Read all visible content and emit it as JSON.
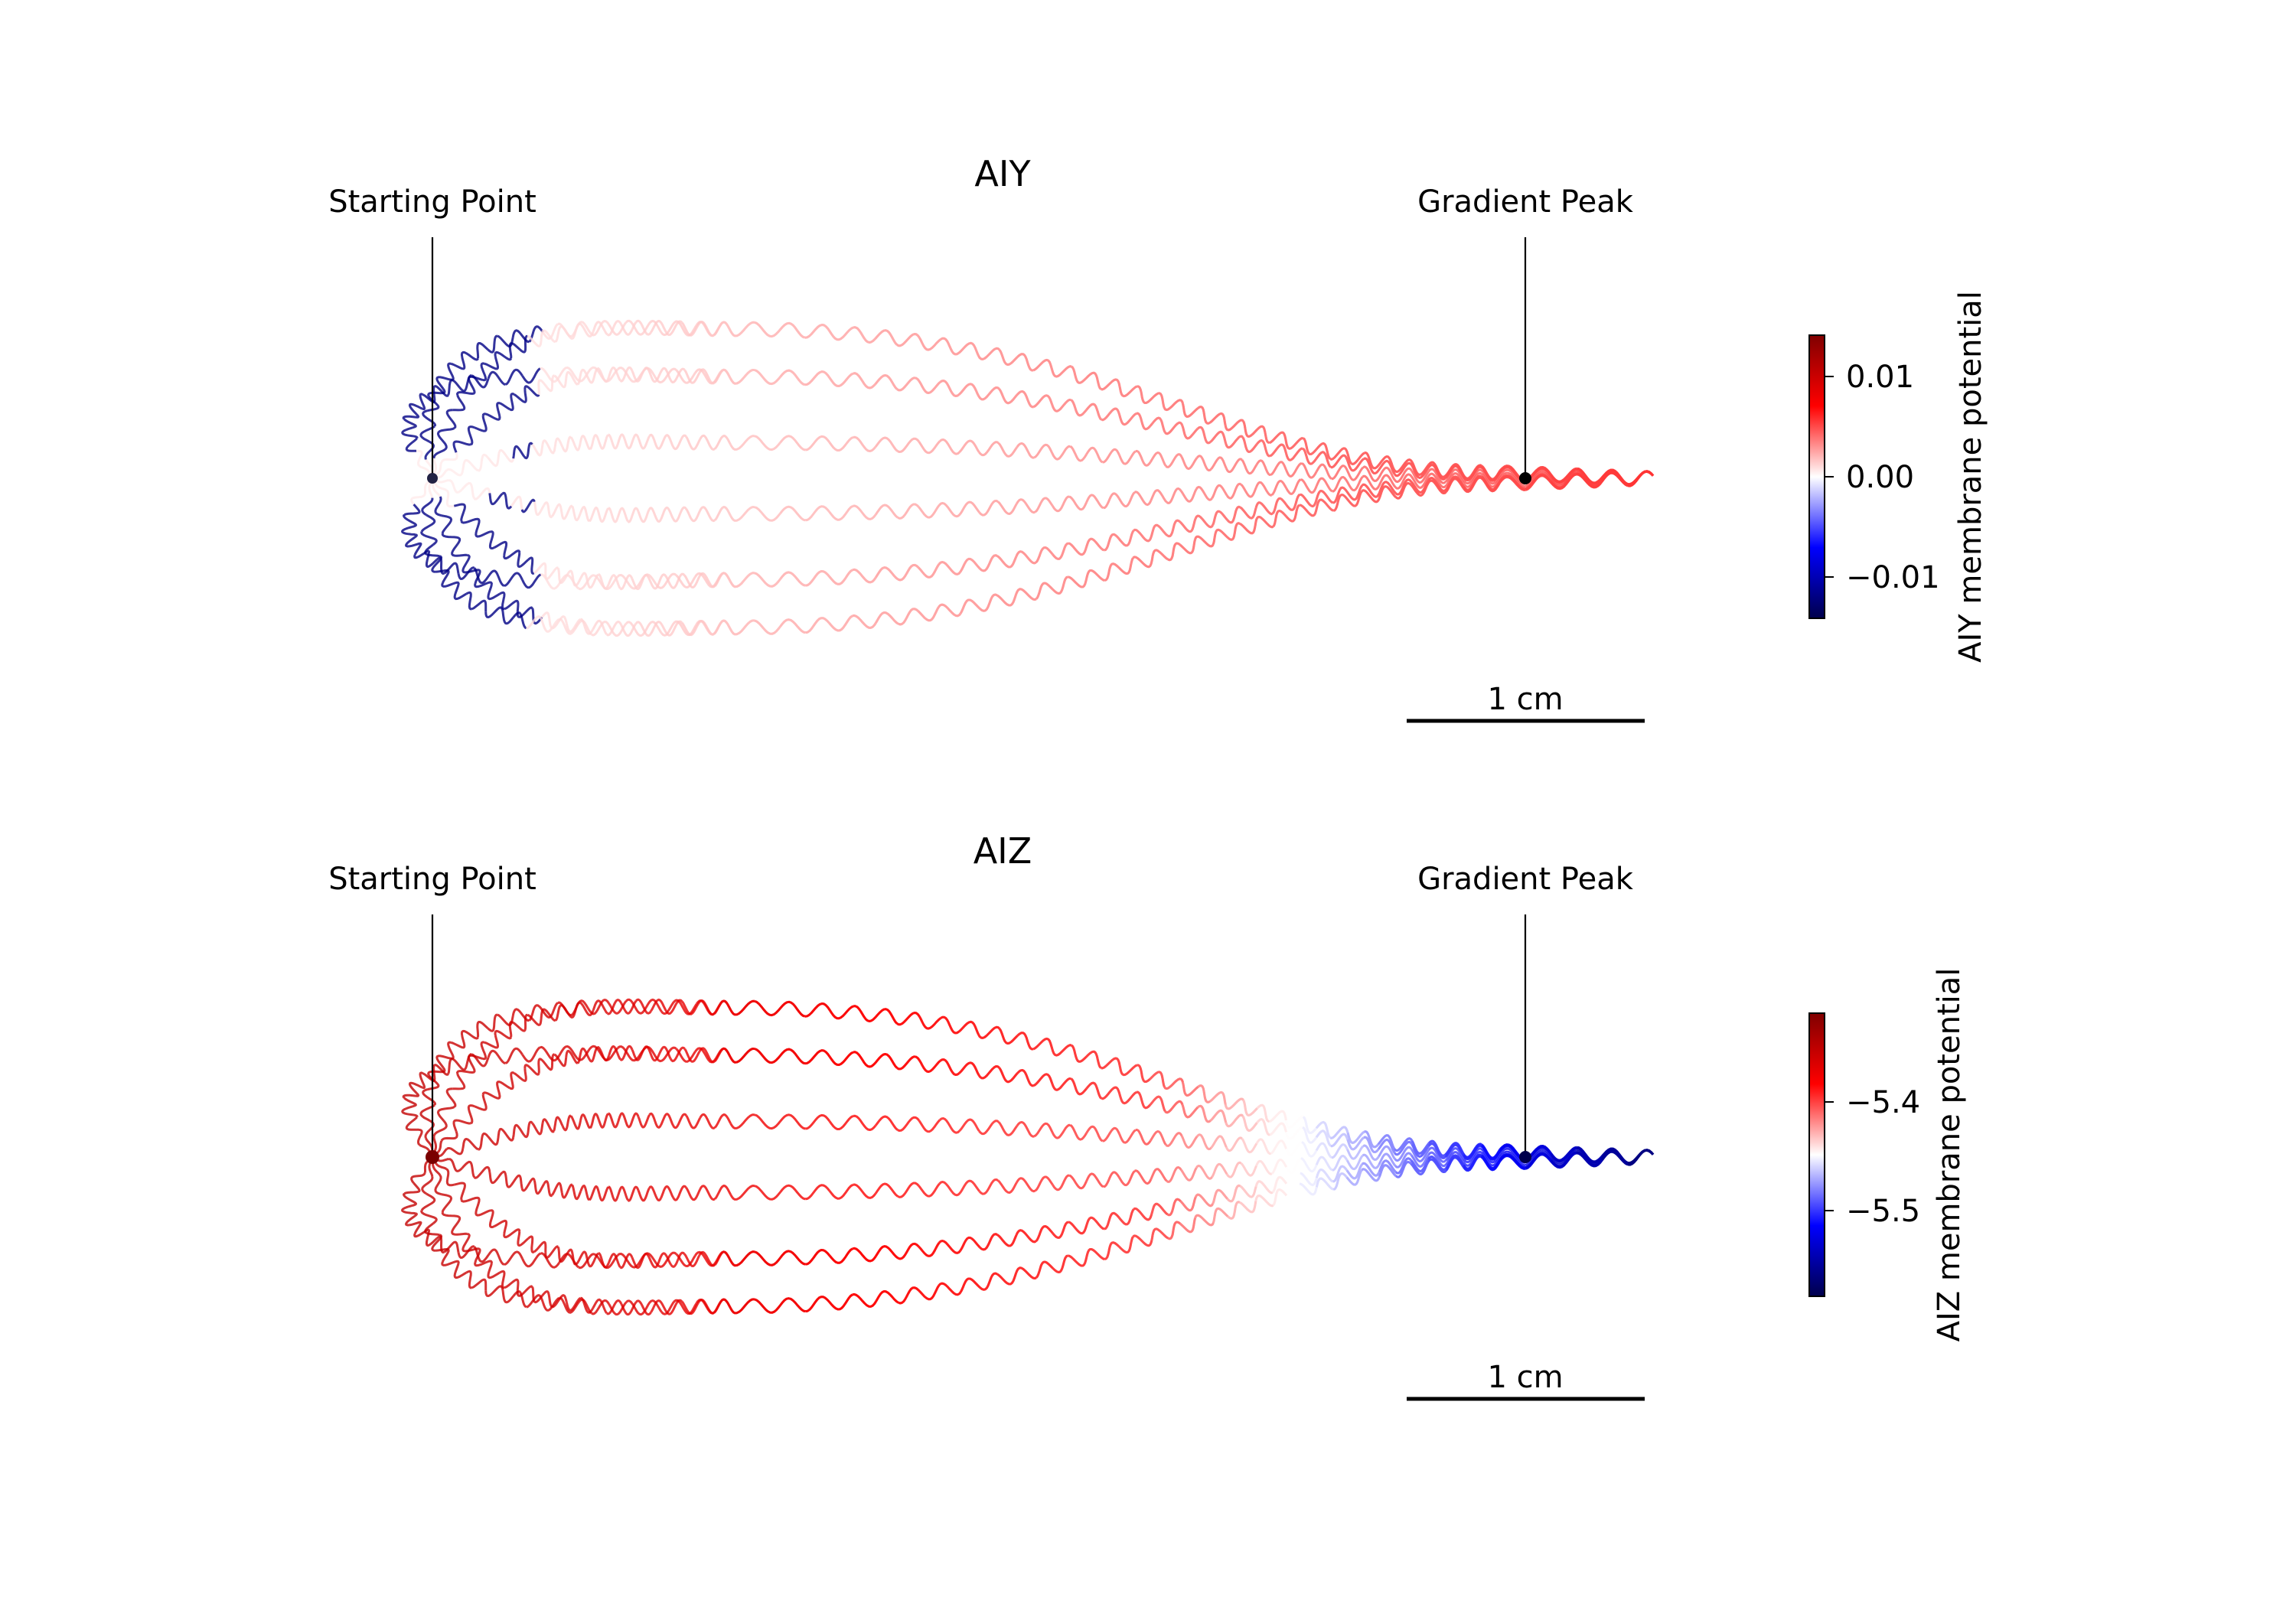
{
  "figure": {
    "colormap": {
      "name": "seismic",
      "stops": [
        "#00004c",
        "#0000ff",
        "#ffffff",
        "#ff0000",
        "#800000"
      ]
    }
  },
  "panels": [
    {
      "id": "aiy",
      "title": "AIY",
      "start_label": "Starting Point",
      "peak_label": "Gradient Peak",
      "scalebar_label": "1 cm",
      "colorbar_label": "AIY membrane potential",
      "colorbar_ticks": [
        "0.01",
        "0.00",
        "−0.01"
      ]
    },
    {
      "id": "aiz",
      "title": "AIZ",
      "start_label": "Starting Point",
      "peak_label": "Gradient Peak",
      "scalebar_label": "1 cm",
      "colorbar_label": "AIZ membrane potential",
      "colorbar_ticks": [
        "−5.4",
        "−5.5"
      ]
    }
  ],
  "chart_data": [
    {
      "type": "line",
      "title": "AIY",
      "xlabel": "",
      "ylabel": "",
      "annotations": [
        "Starting Point",
        "Gradient Peak"
      ],
      "scale_bar": "1 cm",
      "trajectories": 10,
      "initial_headings_deg": [
        -135,
        -105,
        -75,
        -45,
        -15,
        15,
        45,
        75,
        105,
        135
      ],
      "colorbar": {
        "label": "AIY membrane potential",
        "range": [
          -0.014,
          0.014
        ],
        "ticks": [
          0.01,
          0.0,
          -0.01
        ]
      }
    },
    {
      "type": "line",
      "title": "AIZ",
      "xlabel": "",
      "ylabel": "",
      "annotations": [
        "Starting Point",
        "Gradient Peak"
      ],
      "scale_bar": "1 cm",
      "trajectories": 10,
      "initial_headings_deg": [
        -135,
        -105,
        -75,
        -45,
        -15,
        15,
        45,
        75,
        105,
        135
      ],
      "colorbar": {
        "label": "AIZ membrane potential",
        "range": [
          -5.58,
          -5.32
        ],
        "ticks": [
          -5.4,
          -5.5
        ]
      }
    }
  ]
}
